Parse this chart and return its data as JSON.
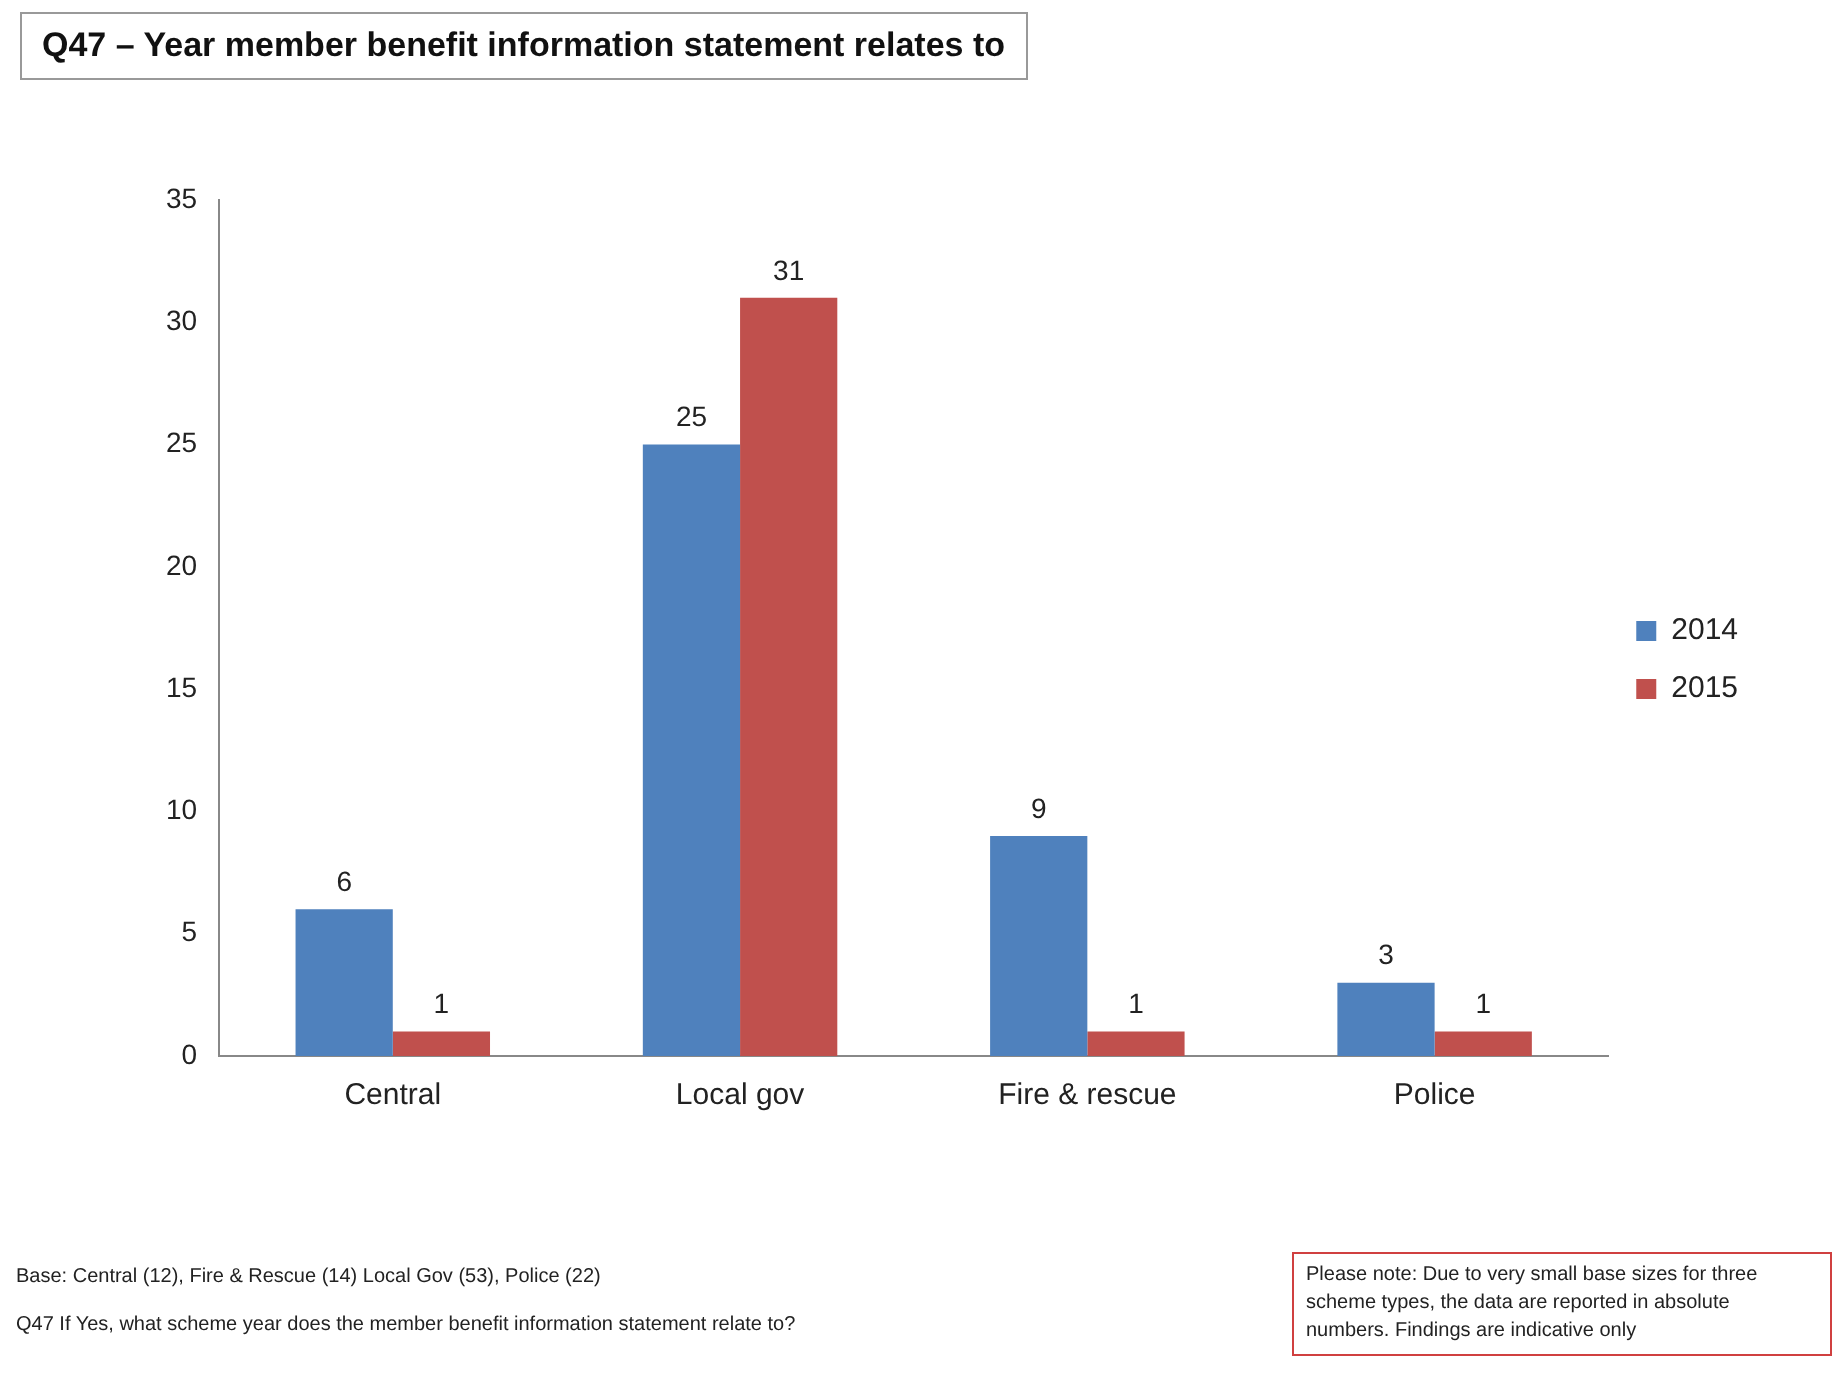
{
  "chart_data": {
    "type": "bar",
    "title": "Q47 – Year member benefit information statement relates to",
    "categories": [
      "Central",
      "Local gov",
      "Fire & rescue",
      "Police"
    ],
    "series": [
      {
        "name": "2014",
        "color": "#4f81bd",
        "values": [
          6,
          25,
          9,
          3
        ]
      },
      {
        "name": "2015",
        "color": "#c0504d",
        "values": [
          1,
          31,
          1,
          1
        ]
      }
    ],
    "ylim": [
      0,
      35
    ],
    "yticks": [
      0,
      5,
      10,
      15,
      20,
      25,
      30,
      35
    ],
    "grid": false,
    "legend": "right",
    "data_labels": true,
    "annotations": [
      "Base: Central (12), Fire & Rescue (14) Local Gov (53), Police (22)",
      "Q47 If Yes, what scheme year does the member  benefit information statement relate to?",
      "Please note: Due to very small base sizes  for three scheme types, the data are reported in absolute numbers.  Findings are indicative only"
    ]
  }
}
